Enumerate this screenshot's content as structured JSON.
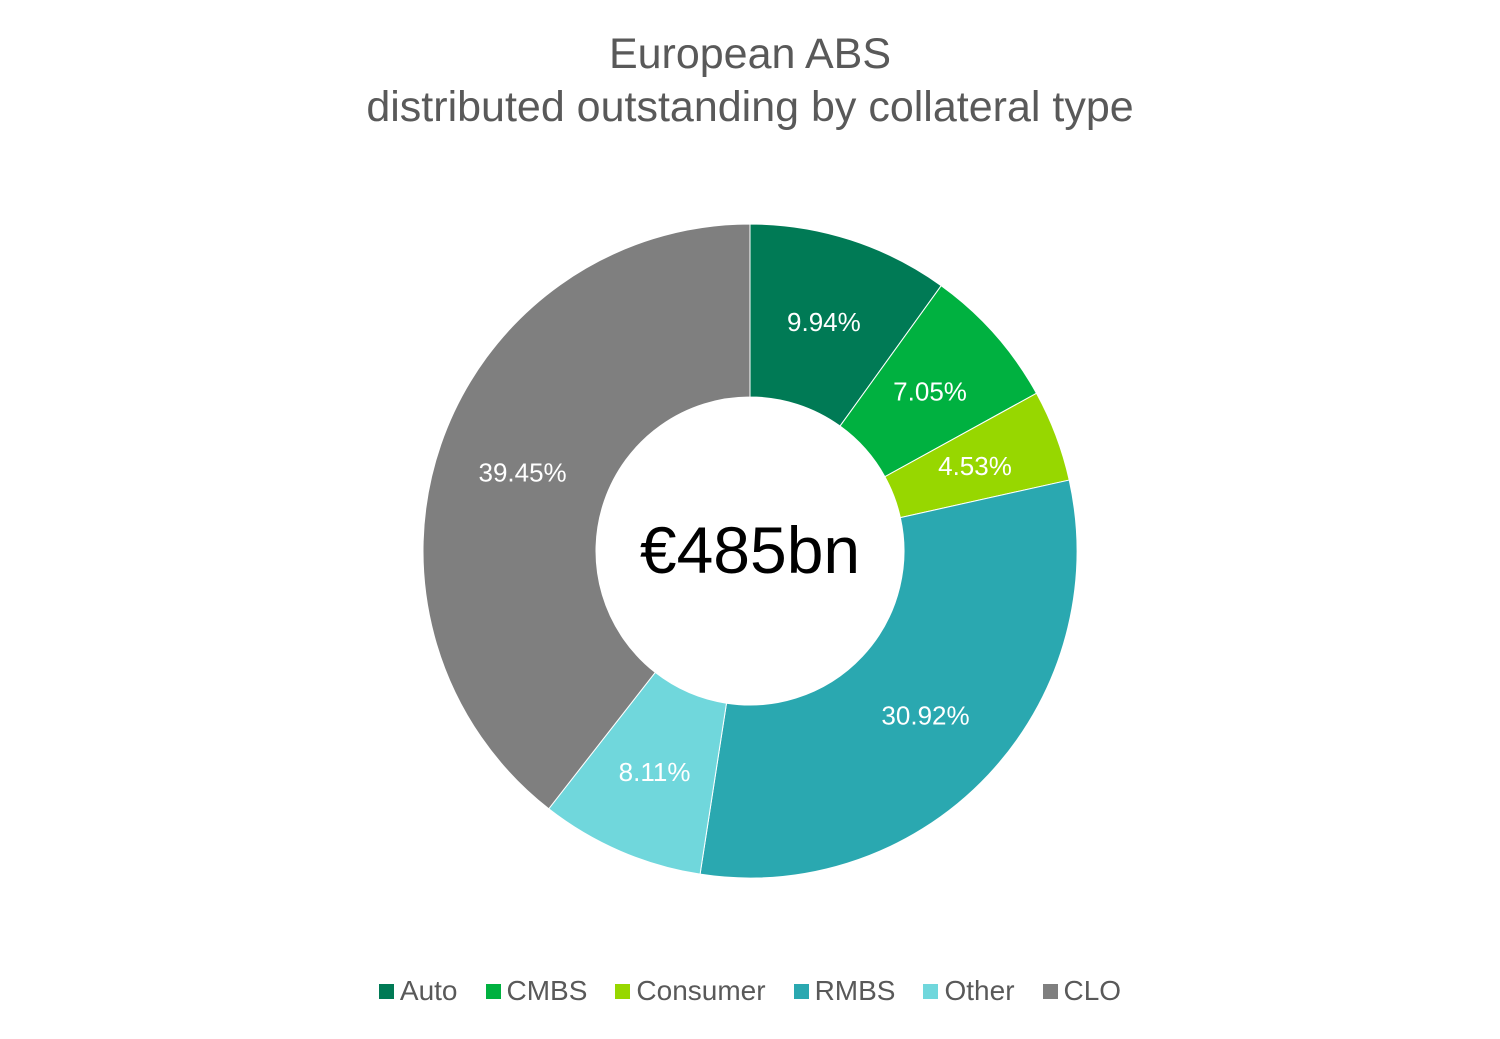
{
  "chart_data": {
    "type": "donut",
    "title_line1": "European ABS",
    "title_line2": "distributed outstanding by collateral type",
    "center_label": "€485bn",
    "categories": [
      "Auto",
      "CMBS",
      "Consumer",
      "RMBS",
      "Other",
      "CLO"
    ],
    "values": [
      9.94,
      7.05,
      4.53,
      30.92,
      8.11,
      39.45
    ],
    "data_labels": [
      "9.94%",
      "7.05%",
      "4.53%",
      "30.92%",
      "8.11%",
      "39.45%"
    ],
    "colors": [
      "#007a55",
      "#00b140",
      "#97d700",
      "#2aa8b0",
      "#70d7dc",
      "#7f7f7f"
    ],
    "legend_position": "bottom"
  }
}
